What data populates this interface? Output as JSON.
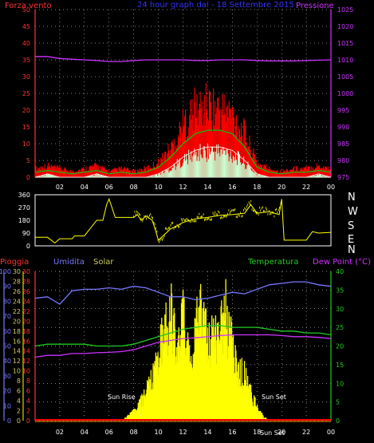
{
  "colors": {
    "background": "#000000",
    "grid": "#ffffff",
    "wind_gust": "#ff0000",
    "wind_avg": "#00cc00",
    "wind_min": "#ffffff",
    "wind_fill": "#c8ffd2",
    "pressure": "#cc33ff",
    "direction": "#ffff00",
    "rain": "#ff0000",
    "humidity": "#7777ff",
    "solar": "#ffff00",
    "temperature": "#22cc22",
    "dewpoint": "#cc33ff",
    "title": "#3333ff",
    "left_axis": "#ff3333",
    "right_axis_top": "#cc33ff",
    "right_axis_temp": "#22cc22",
    "time_axis": "#ffffff"
  },
  "header": {
    "left_label": "Forza vento",
    "title": "24 hour graph dal - 18 Settembre 2015",
    "right_label": "Pressione"
  },
  "direction_panel": {
    "compass_letters": [
      "N",
      "W",
      "S",
      "E",
      "N"
    ]
  },
  "bottom_header": {
    "rain_label": "Pioggia",
    "humidity_label": "Umidita",
    "solar_label": "Solar",
    "temp_label": "Temperatura",
    "dew_label": "Dew Point (°C)"
  },
  "annotations": {
    "sunrise": "Sun Rise",
    "sunset": "Sun Set",
    "sunset_axis_overlap": "Sun Set"
  },
  "time_ticks": [
    "02",
    "04",
    "06",
    "08",
    "10",
    "12",
    "14",
    "16",
    "18",
    "20",
    "22",
    "00"
  ],
  "chart_data": [
    {
      "type": "line",
      "panel": "wind",
      "x_unit": "hour",
      "xlim": [
        0,
        24
      ],
      "y_left_ticks": [
        0,
        5,
        10,
        15,
        20,
        25,
        30,
        35,
        40,
        45,
        50
      ],
      "y_left_range": [
        0,
        50
      ],
      "y_right_ticks": [
        975,
        980,
        985,
        990,
        995,
        1000,
        1005,
        1010,
        1015,
        1020,
        1025
      ],
      "y_right_range": [
        975,
        1025
      ],
      "grid": true,
      "series": [
        {
          "name": "gust",
          "x": [
            0,
            1,
            2,
            3,
            4,
            5,
            6,
            7,
            8,
            9,
            10,
            11,
            12,
            13,
            14,
            15,
            16,
            17,
            18,
            19,
            20,
            21,
            22,
            23,
            24
          ],
          "values": [
            3,
            4,
            3,
            2,
            3,
            4,
            2,
            3,
            2,
            3,
            5,
            10,
            18,
            24,
            25,
            24,
            22,
            15,
            5,
            3,
            2,
            3,
            3,
            4,
            3
          ]
        },
        {
          "name": "average",
          "x": [
            0,
            1,
            2,
            3,
            4,
            5,
            6,
            7,
            8,
            9,
            10,
            11,
            12,
            13,
            14,
            15,
            16,
            17,
            18,
            19,
            20,
            21,
            22,
            23,
            24
          ],
          "values": [
            1.5,
            2,
            1.5,
            1,
            1.5,
            2,
            1,
            1.5,
            1,
            1.5,
            3,
            6,
            10,
            13,
            14,
            14,
            13,
            9,
            3,
            1.5,
            1,
            1.5,
            1.5,
            2,
            1.5
          ]
        },
        {
          "name": "minimum",
          "x": [
            0,
            1,
            2,
            3,
            4,
            5,
            6,
            7,
            8,
            9,
            10,
            11,
            12,
            13,
            14,
            15,
            16,
            17,
            18,
            19,
            20,
            21,
            22,
            23,
            24
          ],
          "values": [
            0,
            1,
            0,
            0,
            0,
            1,
            0,
            0,
            0,
            0,
            1,
            3,
            6,
            8,
            9,
            9,
            8,
            5,
            1,
            0,
            0,
            0,
            0,
            1,
            0
          ]
        },
        {
          "name": "pressure",
          "x": [
            0,
            1,
            2,
            3,
            4,
            5,
            6,
            7,
            8,
            9,
            10,
            11,
            12,
            13,
            14,
            15,
            16,
            17,
            18,
            19,
            20,
            21,
            22,
            23,
            24
          ],
          "values": [
            1011,
            1011,
            1010.4,
            1010.2,
            1010,
            1009.8,
            1009.5,
            1009.5,
            1009.8,
            1010,
            1010,
            1010,
            1010,
            1009.8,
            1009.8,
            1010,
            1010,
            1010,
            1009.8,
            1009.7,
            1009.7,
            1009.7,
            1009.8,
            1009.9,
            1010
          ]
        }
      ]
    },
    {
      "type": "line",
      "panel": "direction",
      "x_unit": "hour",
      "xlim": [
        0,
        24
      ],
      "y_ticks": [
        0,
        90,
        180,
        270,
        360
      ],
      "ylim": [
        0,
        360
      ],
      "series": [
        {
          "name": "direction",
          "x": [
            0,
            1,
            1.6,
            2,
            3,
            3.2,
            4,
            5,
            5.5,
            5.8,
            6,
            6.5,
            7,
            8,
            8.3,
            8.6,
            9,
            9.5,
            9.8,
            10,
            10.5,
            11,
            11.5,
            12,
            13,
            14,
            15,
            16,
            17,
            17.5,
            18,
            19,
            19.8,
            20,
            20.2,
            21,
            22,
            22.5,
            23,
            24
          ],
          "values": [
            60,
            60,
            20,
            50,
            50,
            70,
            70,
            180,
            180,
            290,
            330,
            200,
            200,
            200,
            220,
            180,
            210,
            180,
            100,
            40,
            80,
            120,
            140,
            165,
            190,
            200,
            215,
            220,
            230,
            290,
            230,
            240,
            220,
            330,
            40,
            40,
            40,
            100,
            90,
            95
          ]
        }
      ]
    },
    {
      "type": "line",
      "panel": "temperature",
      "x_unit": "hour",
      "xlim": [
        0,
        24
      ],
      "y_rain_ticks": [
        0,
        2,
        4,
        6,
        8,
        10,
        12,
        14,
        16,
        18,
        20,
        22,
        24,
        26,
        28,
        30
      ],
      "y_humidity_ticks": [
        0,
        10,
        20,
        30,
        40,
        50,
        60,
        70,
        80,
        90,
        100
      ],
      "y_temp_ticks": [
        0,
        5,
        10,
        15,
        20,
        25,
        30,
        35,
        40
      ],
      "ylim_temp": [
        0,
        40
      ],
      "ylim_humidity": [
        0,
        100
      ],
      "ylim_solar": [
        0,
        16
      ],
      "grid": true,
      "series": [
        {
          "name": "humidity",
          "x": [
            0,
            1,
            2,
            3,
            4,
            5,
            6,
            7,
            8,
            9,
            10,
            11,
            12,
            13,
            14,
            15,
            16,
            17,
            18,
            19,
            20,
            21,
            22,
            23,
            24
          ],
          "values": [
            82,
            83,
            78,
            87,
            88,
            88,
            89,
            88,
            90,
            89,
            86,
            83,
            83,
            81,
            82,
            84,
            86,
            85,
            88,
            91,
            92,
            93,
            93,
            91,
            90
          ]
        },
        {
          "name": "temperature",
          "x": [
            0,
            1,
            2,
            3,
            4,
            5,
            6,
            7,
            8,
            9,
            10,
            11,
            12,
            13,
            14,
            15,
            16,
            17,
            18,
            19,
            20,
            21,
            22,
            23,
            24
          ],
          "values": [
            20,
            20.5,
            20.5,
            20.5,
            20.5,
            20,
            20,
            20,
            20.5,
            21.5,
            22.5,
            23.5,
            24.5,
            25,
            25.5,
            25.5,
            25,
            25,
            25,
            24.5,
            24,
            24,
            23.5,
            23.5,
            23
          ]
        },
        {
          "name": "dewpoint",
          "x": [
            0,
            1,
            2,
            3,
            4,
            5,
            6,
            7,
            8,
            9,
            10,
            11,
            12,
            13,
            14,
            15,
            16,
            17,
            18,
            19,
            20,
            21,
            22,
            23,
            24
          ],
          "values": [
            17,
            17.5,
            17.5,
            18,
            18,
            18.2,
            18.3,
            18.5,
            19,
            20,
            21,
            21.5,
            22,
            22.2,
            22.5,
            22.8,
            23,
            23,
            23,
            23,
            22.8,
            22.5,
            22.5,
            22.3,
            22
          ]
        },
        {
          "name": "solar",
          "x": [
            0,
            6,
            7,
            7.5,
            8,
            8.5,
            9,
            9.5,
            10,
            10.5,
            11,
            11.5,
            12,
            12.5,
            13,
            13.5,
            14,
            14.5,
            15,
            15.5,
            16,
            16.5,
            17,
            17.5,
            18,
            18.5,
            19,
            24
          ],
          "values": [
            0,
            0,
            0,
            0.5,
            1,
            2,
            3,
            5,
            7,
            10,
            12,
            8,
            11,
            7,
            10,
            14,
            8,
            9,
            10,
            12,
            8,
            6,
            5,
            3,
            1.5,
            0.5,
            0,
            0
          ]
        },
        {
          "name": "rain",
          "x": [
            0,
            24
          ],
          "values": [
            0,
            0
          ]
        }
      ]
    }
  ]
}
